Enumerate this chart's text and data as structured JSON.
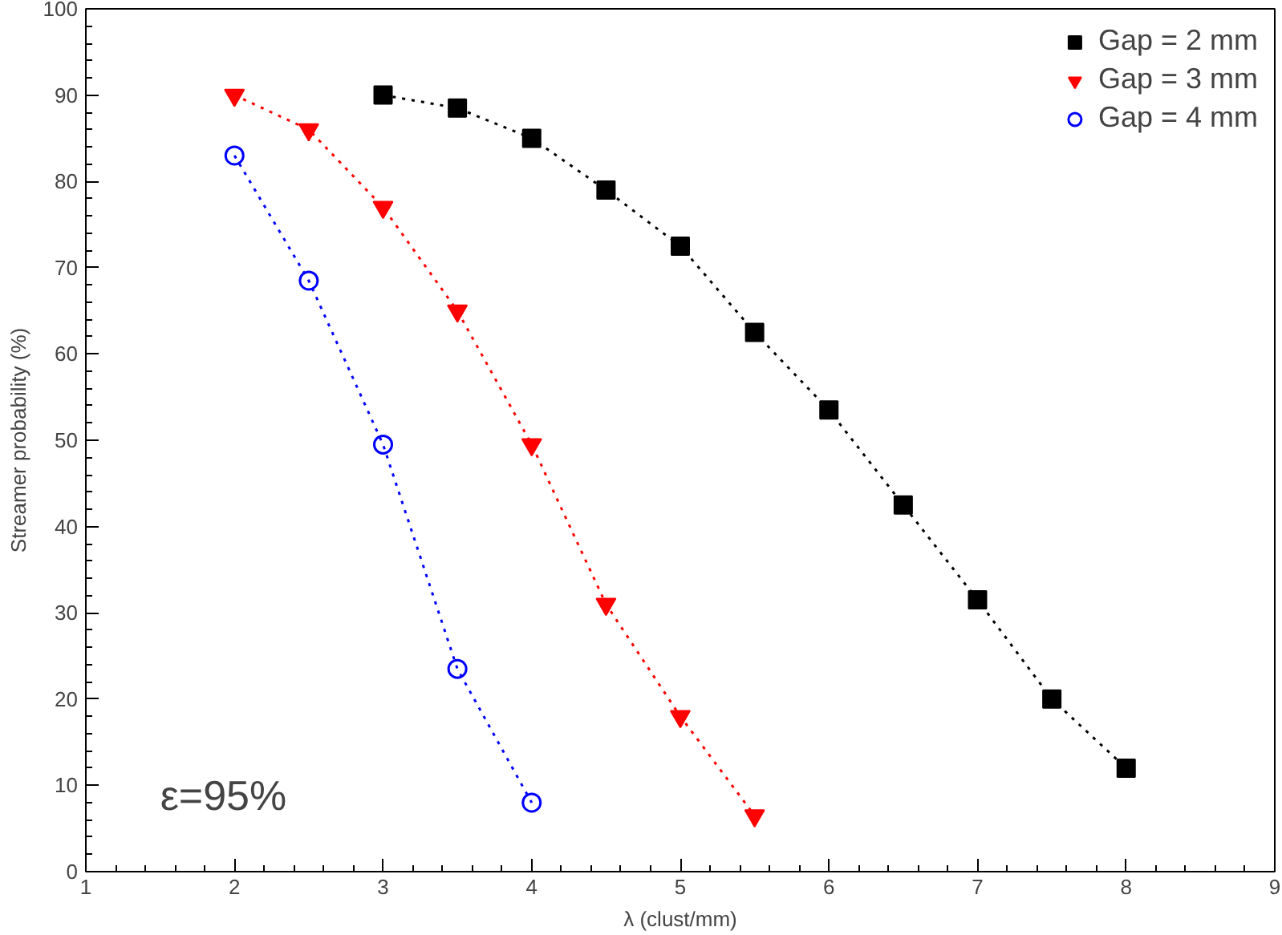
{
  "chart_data": {
    "type": "line",
    "xlabel": "λ (clust/mm)",
    "ylabel": "Streamer probability (%)",
    "xlim": [
      1,
      9
    ],
    "xticks": [
      1,
      2,
      3,
      4,
      5,
      6,
      7,
      8,
      9
    ],
    "ylim": [
      0,
      100
    ],
    "yticks": [
      0,
      10,
      20,
      30,
      40,
      50,
      60,
      70,
      80,
      90,
      100
    ],
    "grid": false,
    "legend": "top right",
    "line_style": "dotted",
    "annotations": [
      "ε=95%"
    ],
    "series": [
      {
        "name": "Gap = 2 mm",
        "color": "#000000",
        "marker": "square",
        "x": [
          3,
          3.5,
          4,
          4.5,
          5,
          5.5,
          6,
          6.5,
          7,
          7.5,
          8
        ],
        "values": [
          90,
          88.5,
          85,
          79,
          72.5,
          62.5,
          53.5,
          42.5,
          31.5,
          20,
          12
        ]
      },
      {
        "name": "Gap = 3 mm",
        "color": "#ff0000",
        "marker": "triangle",
        "x": [
          2,
          2.5,
          3,
          3.5,
          4,
          4.5,
          5,
          5.5
        ],
        "values": [
          90,
          86,
          77,
          65,
          49.5,
          31,
          18,
          6.5
        ]
      },
      {
        "name": "Gap = 4 mm",
        "color": "#0000ff",
        "marker": "circle",
        "x": [
          2,
          2.5,
          3,
          3.5,
          4
        ],
        "values": [
          83,
          68.5,
          49.5,
          23.5,
          8
        ]
      }
    ]
  }
}
